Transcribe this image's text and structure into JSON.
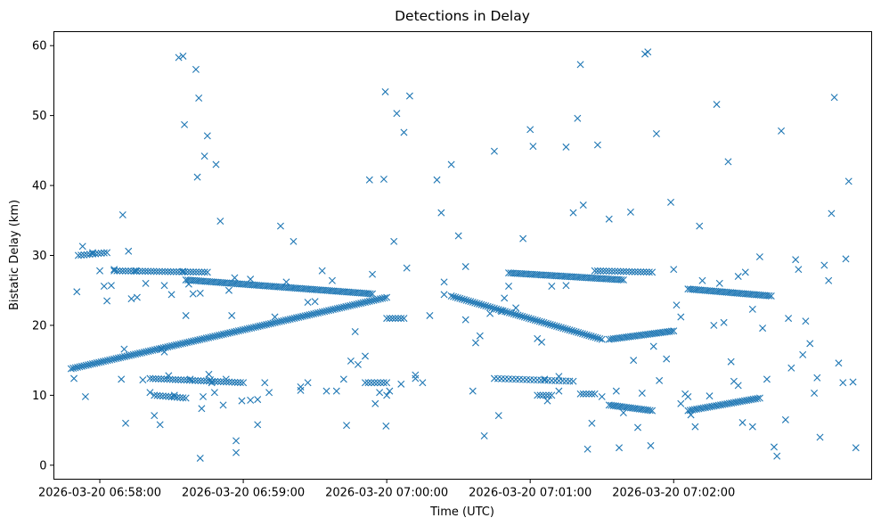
{
  "chart_data": {
    "type": "scatter",
    "title": "Detections in Delay",
    "xlabel": "Time (UTC)",
    "ylabel": "Bistatic Delay (km)",
    "x_unit": "minutes since 2026-03-20 06:58:00",
    "xlim": [
      -0.32,
      5.38
    ],
    "ylim": [
      -2.0,
      62.0
    ],
    "x_ticks": [
      {
        "value": 0,
        "label": "2026-03-20 06:58:00"
      },
      {
        "value": 1,
        "label": "2026-03-20 06:59:00"
      },
      {
        "value": 2,
        "label": "2026-03-20 07:00:00"
      },
      {
        "value": 3,
        "label": "2026-03-20 07:01:00"
      },
      {
        "value": 4,
        "label": "2026-03-20 07:02:00"
      }
    ],
    "y_ticks": [
      {
        "value": 0,
        "label": "0"
      },
      {
        "value": 10,
        "label": "10"
      },
      {
        "value": 20,
        "label": "20"
      },
      {
        "value": 30,
        "label": "30"
      },
      {
        "value": 40,
        "label": "40"
      },
      {
        "value": 50,
        "label": "50"
      },
      {
        "value": 60,
        "label": "60"
      }
    ],
    "grid": false,
    "legend": "none",
    "marker": "x",
    "series": [
      {
        "name": "Detections",
        "color": "#1f77b4",
        "segments": [
          {
            "kind": "track",
            "x0": -0.2,
            "y0": 13.8,
            "x1": 2.0,
            "y1": 24.0,
            "curve": 0.0,
            "step": 0.015
          },
          {
            "kind": "track",
            "x0": 2.45,
            "y0": 24.2,
            "x1": 3.5,
            "y1": 18.0,
            "curve": 0.0,
            "step": 0.015
          },
          {
            "kind": "track",
            "x0": 3.55,
            "y0": 18.0,
            "x1": 4.0,
            "y1": 19.2,
            "curve": 0.0,
            "step": 0.015
          },
          {
            "kind": "track",
            "x0": 4.1,
            "y0": 25.2,
            "x1": 4.68,
            "y1": 24.2,
            "curve": 0.0,
            "step": 0.015
          },
          {
            "kind": "track",
            "x0": 0.6,
            "y0": 26.5,
            "x1": 1.9,
            "y1": 24.5,
            "curve": 0.0,
            "step": 0.015
          },
          {
            "kind": "track",
            "x0": 2.85,
            "y0": 27.5,
            "x1": 3.65,
            "y1": 26.5,
            "curve": 0.0,
            "step": 0.015
          },
          {
            "kind": "track",
            "x0": 0.1,
            "y0": 27.8,
            "x1": 0.75,
            "y1": 27.6,
            "curve": 0.0,
            "step": 0.02
          },
          {
            "kind": "track",
            "x0": 3.45,
            "y0": 27.8,
            "x1": 3.85,
            "y1": 27.6,
            "curve": 0.0,
            "step": 0.02
          },
          {
            "kind": "track",
            "x0": -0.15,
            "y0": 30.0,
            "x1": 0.05,
            "y1": 30.4,
            "curve": 0.0,
            "step": 0.02
          },
          {
            "kind": "track",
            "x0": 0.35,
            "y0": 12.4,
            "x1": 1.0,
            "y1": 11.8,
            "curve": 0.0,
            "step": 0.02
          },
          {
            "kind": "track",
            "x0": 2.75,
            "y0": 12.4,
            "x1": 3.3,
            "y1": 12.0,
            "curve": 0.0,
            "step": 0.025
          },
          {
            "kind": "track",
            "x0": 3.55,
            "y0": 8.6,
            "x1": 3.85,
            "y1": 7.8,
            "curve": 0.0,
            "step": 0.015
          },
          {
            "kind": "track",
            "x0": 4.1,
            "y0": 7.8,
            "x1": 4.6,
            "y1": 9.6,
            "curve": 0.0,
            "step": 0.015
          },
          {
            "kind": "track",
            "x0": 0.38,
            "y0": 10.0,
            "x1": 0.6,
            "y1": 9.6,
            "curve": 0.0,
            "step": 0.02
          },
          {
            "kind": "track",
            "x0": 1.85,
            "y0": 11.8,
            "x1": 2.0,
            "y1": 11.8,
            "curve": 0.0,
            "step": 0.02
          },
          {
            "kind": "track",
            "x0": 2.0,
            "y0": 21.0,
            "x1": 2.12,
            "y1": 21.0,
            "curve": 0.0,
            "step": 0.02
          },
          {
            "kind": "track",
            "x0": 3.35,
            "y0": 10.2,
            "x1": 3.45,
            "y1": 10.2,
            "curve": 0.0,
            "step": 0.02
          },
          {
            "kind": "track",
            "x0": 3.05,
            "y0": 10.0,
            "x1": 3.15,
            "y1": 10.0,
            "curve": 0.0,
            "step": 0.02
          }
        ],
        "points": [
          [
            -0.18,
            12.4
          ],
          [
            -0.16,
            24.8
          ],
          [
            -0.12,
            31.3
          ],
          [
            -0.1,
            9.8
          ],
          [
            -0.05,
            30.4
          ],
          [
            0.0,
            27.8
          ],
          [
            0.03,
            25.6
          ],
          [
            0.05,
            23.5
          ],
          [
            0.08,
            25.7
          ],
          [
            0.1,
            28.0
          ],
          [
            0.15,
            12.3
          ],
          [
            0.16,
            35.8
          ],
          [
            0.17,
            16.6
          ],
          [
            0.18,
            6.0
          ],
          [
            0.2,
            30.6
          ],
          [
            0.22,
            23.8
          ],
          [
            0.26,
            24.0
          ],
          [
            0.3,
            12.2
          ],
          [
            0.32,
            26.0
          ],
          [
            0.35,
            10.4
          ],
          [
            0.38,
            7.1
          ],
          [
            0.42,
            5.8
          ],
          [
            0.43,
            16.6
          ],
          [
            0.45,
            25.7
          ],
          [
            0.48,
            12.8
          ],
          [
            0.5,
            24.4
          ],
          [
            0.52,
            10.0
          ],
          [
            0.55,
            58.3
          ],
          [
            0.58,
            58.5
          ],
          [
            0.59,
            48.7
          ],
          [
            0.6,
            21.4
          ],
          [
            0.62,
            25.9
          ],
          [
            0.63,
            12.3
          ],
          [
            0.65,
            24.5
          ],
          [
            0.67,
            56.6
          ],
          [
            0.68,
            41.2
          ],
          [
            0.69,
            52.5
          ],
          [
            0.7,
            24.6
          ],
          [
            0.71,
            8.1
          ],
          [
            0.72,
            9.8
          ],
          [
            0.73,
            44.2
          ],
          [
            0.75,
            47.1
          ],
          [
            0.76,
            13.0
          ],
          [
            0.77,
            12.2
          ],
          [
            0.78,
            11.8
          ],
          [
            0.8,
            10.4
          ],
          [
            0.81,
            43.0
          ],
          [
            0.84,
            34.9
          ],
          [
            0.86,
            8.6
          ],
          [
            0.88,
            12.3
          ],
          [
            0.9,
            25.0
          ],
          [
            0.92,
            21.4
          ],
          [
            0.94,
            26.8
          ],
          [
            0.99,
            9.2
          ],
          [
            1.05,
            9.3
          ],
          [
            1.1,
            5.8
          ],
          [
            1.15,
            11.8
          ],
          [
            1.18,
            10.4
          ],
          [
            1.22,
            21.2
          ],
          [
            1.26,
            34.2
          ],
          [
            1.3,
            26.2
          ],
          [
            1.35,
            32.0
          ],
          [
            1.4,
            11.2
          ],
          [
            1.45,
            23.3
          ],
          [
            1.5,
            23.4
          ],
          [
            1.55,
            27.8
          ],
          [
            1.58,
            10.6
          ],
          [
            1.62,
            26.4
          ],
          [
            1.65,
            10.6
          ],
          [
            1.7,
            12.3
          ],
          [
            1.72,
            5.7
          ],
          [
            1.75,
            14.9
          ],
          [
            1.78,
            19.1
          ],
          [
            1.8,
            14.4
          ],
          [
            1.85,
            15.6
          ],
          [
            1.88,
            40.8
          ],
          [
            1.9,
            27.3
          ],
          [
            1.92,
            8.8
          ],
          [
            1.95,
            10.4
          ],
          [
            1.98,
            40.9
          ],
          [
            1.99,
            53.4
          ],
          [
            1.995,
            5.6
          ],
          [
            2.0,
            10.0
          ],
          [
            2.02,
            10.6
          ],
          [
            2.05,
            32.0
          ],
          [
            2.07,
            50.3
          ],
          [
            2.1,
            11.6
          ],
          [
            2.12,
            47.6
          ],
          [
            2.14,
            28.2
          ],
          [
            2.16,
            52.8
          ],
          [
            2.2,
            12.4
          ],
          [
            2.25,
            11.8
          ],
          [
            2.3,
            21.4
          ],
          [
            2.35,
            40.8
          ],
          [
            2.38,
            36.1
          ],
          [
            2.4,
            24.4
          ],
          [
            2.45,
            43.0
          ],
          [
            2.5,
            32.8
          ],
          [
            2.55,
            28.4
          ],
          [
            2.6,
            10.6
          ],
          [
            2.65,
            18.5
          ],
          [
            2.68,
            4.2
          ],
          [
            2.72,
            21.7
          ],
          [
            2.75,
            44.9
          ],
          [
            2.78,
            7.1
          ],
          [
            2.82,
            23.9
          ],
          [
            2.85,
            25.6
          ],
          [
            2.9,
            22.5
          ],
          [
            2.95,
            32.4
          ],
          [
            3.0,
            48.0
          ],
          [
            3.02,
            45.6
          ],
          [
            3.05,
            18.1
          ],
          [
            3.08,
            17.6
          ],
          [
            3.12,
            9.2
          ],
          [
            3.15,
            25.6
          ],
          [
            3.2,
            10.6
          ],
          [
            3.25,
            45.5
          ],
          [
            3.3,
            36.1
          ],
          [
            3.33,
            49.6
          ],
          [
            3.35,
            57.3
          ],
          [
            3.37,
            37.2
          ],
          [
            3.4,
            2.3
          ],
          [
            3.43,
            6.0
          ],
          [
            3.47,
            45.8
          ],
          [
            3.5,
            9.8
          ],
          [
            3.55,
            35.2
          ],
          [
            3.6,
            10.6
          ],
          [
            3.62,
            2.5
          ],
          [
            3.65,
            7.5
          ],
          [
            3.7,
            36.2
          ],
          [
            3.72,
            15.0
          ],
          [
            3.75,
            5.4
          ],
          [
            3.78,
            10.3
          ],
          [
            3.8,
            58.8
          ],
          [
            3.82,
            59.1
          ],
          [
            3.84,
            2.8
          ],
          [
            3.86,
            17.0
          ],
          [
            3.88,
            47.4
          ],
          [
            3.9,
            12.1
          ],
          [
            3.95,
            15.2
          ],
          [
            3.98,
            37.6
          ],
          [
            4.0,
            28.0
          ],
          [
            4.02,
            22.9
          ],
          [
            4.05,
            8.8
          ],
          [
            4.08,
            10.2
          ],
          [
            4.1,
            9.8
          ],
          [
            4.12,
            7.2
          ],
          [
            4.15,
            5.5
          ],
          [
            4.18,
            34.2
          ],
          [
            4.2,
            26.4
          ],
          [
            4.25,
            9.9
          ],
          [
            4.3,
            51.6
          ],
          [
            4.32,
            26.0
          ],
          [
            4.35,
            20.4
          ],
          [
            4.38,
            43.4
          ],
          [
            4.4,
            14.8
          ],
          [
            4.42,
            12.0
          ],
          [
            4.45,
            11.4
          ],
          [
            4.48,
            6.1
          ],
          [
            4.5,
            27.6
          ],
          [
            4.55,
            5.5
          ],
          [
            4.6,
            29.8
          ],
          [
            4.62,
            19.6
          ],
          [
            4.65,
            12.3
          ],
          [
            4.7,
            2.6
          ],
          [
            4.72,
            1.3
          ],
          [
            4.75,
            47.8
          ],
          [
            4.78,
            6.5
          ],
          [
            4.8,
            21.0
          ],
          [
            4.82,
            13.9
          ],
          [
            4.85,
            29.4
          ],
          [
            4.87,
            28.0
          ],
          [
            4.9,
            15.8
          ],
          [
            4.92,
            20.6
          ],
          [
            4.95,
            17.4
          ],
          [
            4.98,
            10.3
          ],
          [
            5.0,
            12.5
          ],
          [
            5.02,
            4.0
          ],
          [
            5.05,
            28.6
          ],
          [
            5.08,
            26.4
          ],
          [
            5.1,
            36.0
          ],
          [
            5.12,
            52.6
          ],
          [
            5.15,
            14.6
          ],
          [
            5.18,
            11.8
          ],
          [
            5.2,
            29.5
          ],
          [
            5.22,
            40.6
          ],
          [
            5.25,
            11.9
          ],
          [
            5.27,
            2.5
          ],
          [
            0.45,
            16.2
          ],
          [
            0.58,
            27.7
          ],
          [
            1.45,
            11.8
          ],
          [
            2.55,
            20.8
          ],
          [
            4.45,
            27.0
          ],
          [
            1.05,
            26.6
          ],
          [
            3.25,
            25.7
          ],
          [
            0.25,
            27.8
          ],
          [
            2.2,
            12.9
          ],
          [
            3.1,
            12.3
          ],
          [
            0.7,
            1.0
          ],
          [
            0.95,
            1.8
          ],
          [
            0.95,
            3.5
          ],
          [
            1.1,
            9.4
          ],
          [
            1.4,
            10.7
          ],
          [
            2.4,
            26.2
          ],
          [
            2.62,
            17.5
          ],
          [
            2.8,
            22.0
          ],
          [
            3.2,
            12.7
          ],
          [
            4.05,
            21.2
          ],
          [
            4.28,
            20.0
          ],
          [
            4.55,
            22.3
          ]
        ]
      }
    ]
  }
}
